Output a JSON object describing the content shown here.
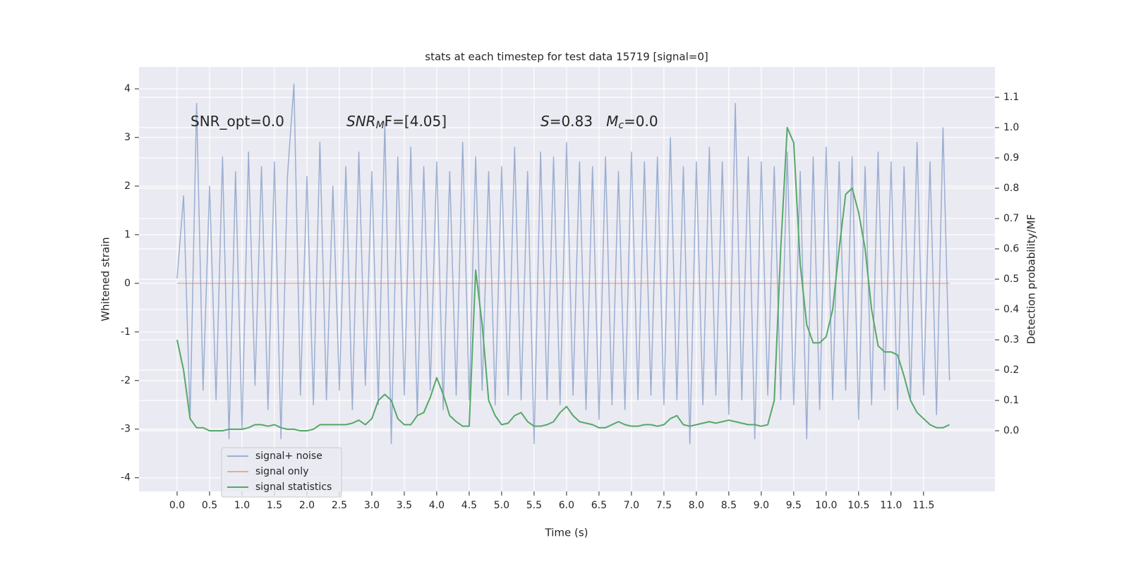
{
  "chart_data": {
    "type": "line",
    "title": "stats at each timestep for test data 15719 [signal=0]",
    "xlabel": "Time (s)",
    "ylabel": "Whitened strain",
    "y2label": "Detection probability/MF",
    "x": [
      0.0,
      0.1,
      0.2,
      0.3,
      0.4,
      0.5,
      0.6,
      0.7,
      0.8,
      0.9,
      1.0,
      1.1,
      1.2,
      1.3,
      1.4,
      1.5,
      1.6,
      1.7,
      1.8,
      1.9,
      2.0,
      2.1,
      2.2,
      2.3,
      2.4,
      2.5,
      2.6,
      2.7,
      2.8,
      2.9,
      3.0,
      3.1,
      3.2,
      3.3,
      3.4,
      3.5,
      3.6,
      3.7,
      3.8,
      3.9,
      4.0,
      4.1,
      4.2,
      4.3,
      4.4,
      4.5,
      4.6,
      4.7,
      4.8,
      4.9,
      5.0,
      5.1,
      5.2,
      5.3,
      5.4,
      5.5,
      5.6,
      5.7,
      5.8,
      5.9,
      6.0,
      6.1,
      6.2,
      6.3,
      6.4,
      6.5,
      6.6,
      6.7,
      6.8,
      6.9,
      7.0,
      7.1,
      7.2,
      7.3,
      7.4,
      7.5,
      7.6,
      7.7,
      7.8,
      7.9,
      8.0,
      8.1,
      8.2,
      8.3,
      8.4,
      8.5,
      8.6,
      8.7,
      8.8,
      8.9,
      9.0,
      9.1,
      9.2,
      9.3,
      9.4,
      9.5,
      9.6,
      9.7,
      9.8,
      9.9,
      10.0,
      10.1,
      10.2,
      10.3,
      10.4,
      10.5,
      10.6,
      10.7,
      10.8,
      10.9,
      11.0,
      11.1,
      11.2,
      11.3,
      11.4,
      11.5,
      11.6,
      11.7,
      11.8,
      11.9
    ],
    "series": [
      {
        "name": "signal+ noise",
        "color": "#4c72b0",
        "opacity": 0.5,
        "values": [
          0.1,
          1.8,
          -2.8,
          3.7,
          -2.2,
          2.0,
          -2.4,
          2.6,
          -3.2,
          2.3,
          -3.0,
          2.7,
          -2.1,
          2.4,
          -2.6,
          2.5,
          -3.2,
          2.2,
          4.1,
          -2.3,
          2.2,
          -2.5,
          2.9,
          -2.4,
          2.0,
          -2.2,
          2.4,
          -2.6,
          2.7,
          -2.1,
          2.3,
          -2.5,
          3.3,
          -3.3,
          2.6,
          -2.3,
          2.8,
          -2.7,
          2.4,
          -2.2,
          2.5,
          -2.6,
          2.3,
          -2.3,
          2.9,
          -2.4,
          2.6,
          -2.2,
          2.3,
          -2.5,
          2.4,
          -2.3,
          2.8,
          -2.4,
          2.3,
          -3.3,
          2.7,
          -2.4,
          2.6,
          -2.5,
          2.9,
          -2.3,
          2.5,
          -2.6,
          2.4,
          -2.8,
          2.6,
          -2.5,
          2.3,
          -2.6,
          2.7,
          -2.4,
          2.5,
          -2.3,
          2.6,
          -2.5,
          3.0,
          -2.4,
          2.4,
          -3.3,
          2.5,
          -2.5,
          2.8,
          -2.3,
          2.5,
          -2.7,
          3.7,
          -2.4,
          2.6,
          -3.2,
          2.5,
          -2.3,
          2.4,
          -2.4,
          2.7,
          -2.5,
          2.3,
          -3.2,
          2.6,
          -2.6,
          2.8,
          -2.4,
          2.5,
          -2.2,
          2.6,
          -2.8,
          2.4,
          -2.5,
          2.7,
          -2.2,
          2.5,
          -2.6,
          2.4,
          -2.4,
          2.9,
          -2.3,
          2.5,
          -2.7,
          3.2,
          -2.0
        ]
      },
      {
        "name": "signal only",
        "color": "#dd8452",
        "opacity": 0.6,
        "values": [
          0,
          0,
          0,
          0,
          0,
          0,
          0,
          0,
          0,
          0,
          0,
          0,
          0,
          0,
          0,
          0,
          0,
          0,
          0,
          0,
          0,
          0,
          0,
          0,
          0,
          0,
          0,
          0,
          0,
          0,
          0,
          0,
          0,
          0,
          0,
          0,
          0,
          0,
          0,
          0,
          0,
          0,
          0,
          0,
          0,
          0,
          0,
          0,
          0,
          0,
          0,
          0,
          0,
          0,
          0,
          0,
          0,
          0,
          0,
          0,
          0,
          0,
          0,
          0,
          0,
          0,
          0,
          0,
          0,
          0,
          0,
          0,
          0,
          0,
          0,
          0,
          0,
          0,
          0,
          0,
          0,
          0,
          0,
          0,
          0,
          0,
          0,
          0,
          0,
          0,
          0,
          0,
          0,
          0,
          0,
          0,
          0,
          0,
          0,
          0,
          0,
          0,
          0,
          0,
          0,
          0,
          0,
          0,
          0,
          0,
          0,
          0,
          0,
          0,
          0,
          0,
          0,
          0,
          0,
          0
        ]
      },
      {
        "name": "signal statistics",
        "color": "#55a868",
        "opacity": 1,
        "axis": "y2",
        "values": [
          0.3,
          0.2,
          0.04,
          0.01,
          0.01,
          0.0,
          0.0,
          0.0,
          0.005,
          0.005,
          0.005,
          0.01,
          0.02,
          0.02,
          0.015,
          0.02,
          0.01,
          0.005,
          0.005,
          0.0,
          0.0,
          0.005,
          0.02,
          0.02,
          0.02,
          0.02,
          0.02,
          0.025,
          0.035,
          0.02,
          0.04,
          0.1,
          0.12,
          0.1,
          0.04,
          0.02,
          0.02,
          0.05,
          0.06,
          0.11,
          0.175,
          0.12,
          0.05,
          0.03,
          0.015,
          0.015,
          0.53,
          0.35,
          0.1,
          0.05,
          0.02,
          0.025,
          0.05,
          0.06,
          0.03,
          0.015,
          0.015,
          0.02,
          0.03,
          0.06,
          0.08,
          0.05,
          0.03,
          0.025,
          0.02,
          0.01,
          0.01,
          0.02,
          0.03,
          0.02,
          0.015,
          0.015,
          0.02,
          0.02,
          0.015,
          0.02,
          0.04,
          0.05,
          0.02,
          0.015,
          0.02,
          0.025,
          0.03,
          0.025,
          0.03,
          0.035,
          0.03,
          0.025,
          0.02,
          0.02,
          0.015,
          0.02,
          0.1,
          0.6,
          1.0,
          0.95,
          0.55,
          0.35,
          0.29,
          0.29,
          0.31,
          0.4,
          0.6,
          0.78,
          0.8,
          0.72,
          0.6,
          0.4,
          0.28,
          0.26,
          0.26,
          0.25,
          0.18,
          0.1,
          0.06,
          0.04,
          0.02,
          0.01,
          0.01,
          0.02
        ]
      }
    ],
    "xlim": [
      -0.587,
      12.6
    ],
    "xticks": [
      {
        "value": 0,
        "label": "0.0"
      },
      {
        "value": 0.5,
        "label": "0.5"
      },
      {
        "value": 1,
        "label": "1.0"
      },
      {
        "value": 1.5,
        "label": "1.5"
      },
      {
        "value": 2,
        "label": "2.0"
      },
      {
        "value": 2.5,
        "label": "2.5"
      },
      {
        "value": 3,
        "label": "3.0"
      },
      {
        "value": 3.5,
        "label": "3.5"
      },
      {
        "value": 4,
        "label": "4.0"
      },
      {
        "value": 4.5,
        "label": "4.5"
      },
      {
        "value": 5,
        "label": "5.0"
      },
      {
        "value": 5.5,
        "label": "5.5"
      },
      {
        "value": 6,
        "label": "6.0"
      },
      {
        "value": 6.5,
        "label": "6.5"
      },
      {
        "value": 7,
        "label": "7.0"
      },
      {
        "value": 7.5,
        "label": "7.5"
      },
      {
        "value": 8,
        "label": "8.0"
      },
      {
        "value": 8.5,
        "label": "8.5"
      },
      {
        "value": 9,
        "label": "9.0"
      },
      {
        "value": 9.5,
        "label": "9.5"
      },
      {
        "value": 10,
        "label": "10.0"
      },
      {
        "value": 10.5,
        "label": "10.5"
      },
      {
        "value": 11,
        "label": "11.0"
      },
      {
        "value": 11.5,
        "label": "11.5"
      }
    ],
    "ylim": [
      -4.28,
      4.45
    ],
    "yticks": [
      -4,
      -3,
      -2,
      -1,
      0,
      1,
      2,
      3,
      4
    ],
    "y2lim": [
      -0.2,
      1.2
    ],
    "y2ticks": [
      {
        "value": 0,
        "label": "0.0"
      },
      {
        "value": 0.1,
        "label": "0.1"
      },
      {
        "value": 0.2,
        "label": "0.2"
      },
      {
        "value": 0.3,
        "label": "0.3"
      },
      {
        "value": 0.4,
        "label": "0.4"
      },
      {
        "value": 0.5,
        "label": "0.5"
      },
      {
        "value": 0.6,
        "label": "0.6"
      },
      {
        "value": 0.7,
        "label": "0.7"
      },
      {
        "value": 0.8,
        "label": "0.8"
      },
      {
        "value": 0.9,
        "label": "0.9"
      },
      {
        "value": 1.0,
        "label": "1.0"
      },
      {
        "value": 1.1,
        "label": "1.1"
      }
    ],
    "grid": true,
    "legend": "lower left",
    "annotations": [
      {
        "parts": [
          {
            "t": "SNR_opt=0.0"
          }
        ]
      },
      {
        "parts": [
          {
            "t": "SNR",
            "italic": true
          },
          {
            "t": "M",
            "italic": true,
            "sub": true
          },
          {
            "t": "F=[4.05]"
          }
        ]
      },
      {
        "parts": [
          {
            "t": "S",
            "italic": true
          },
          {
            "t": "=0.83   "
          },
          {
            "t": "M",
            "italic": true
          },
          {
            "t": "c",
            "italic": true,
            "sub": true
          },
          {
            "t": "=0.0"
          }
        ]
      }
    ]
  }
}
